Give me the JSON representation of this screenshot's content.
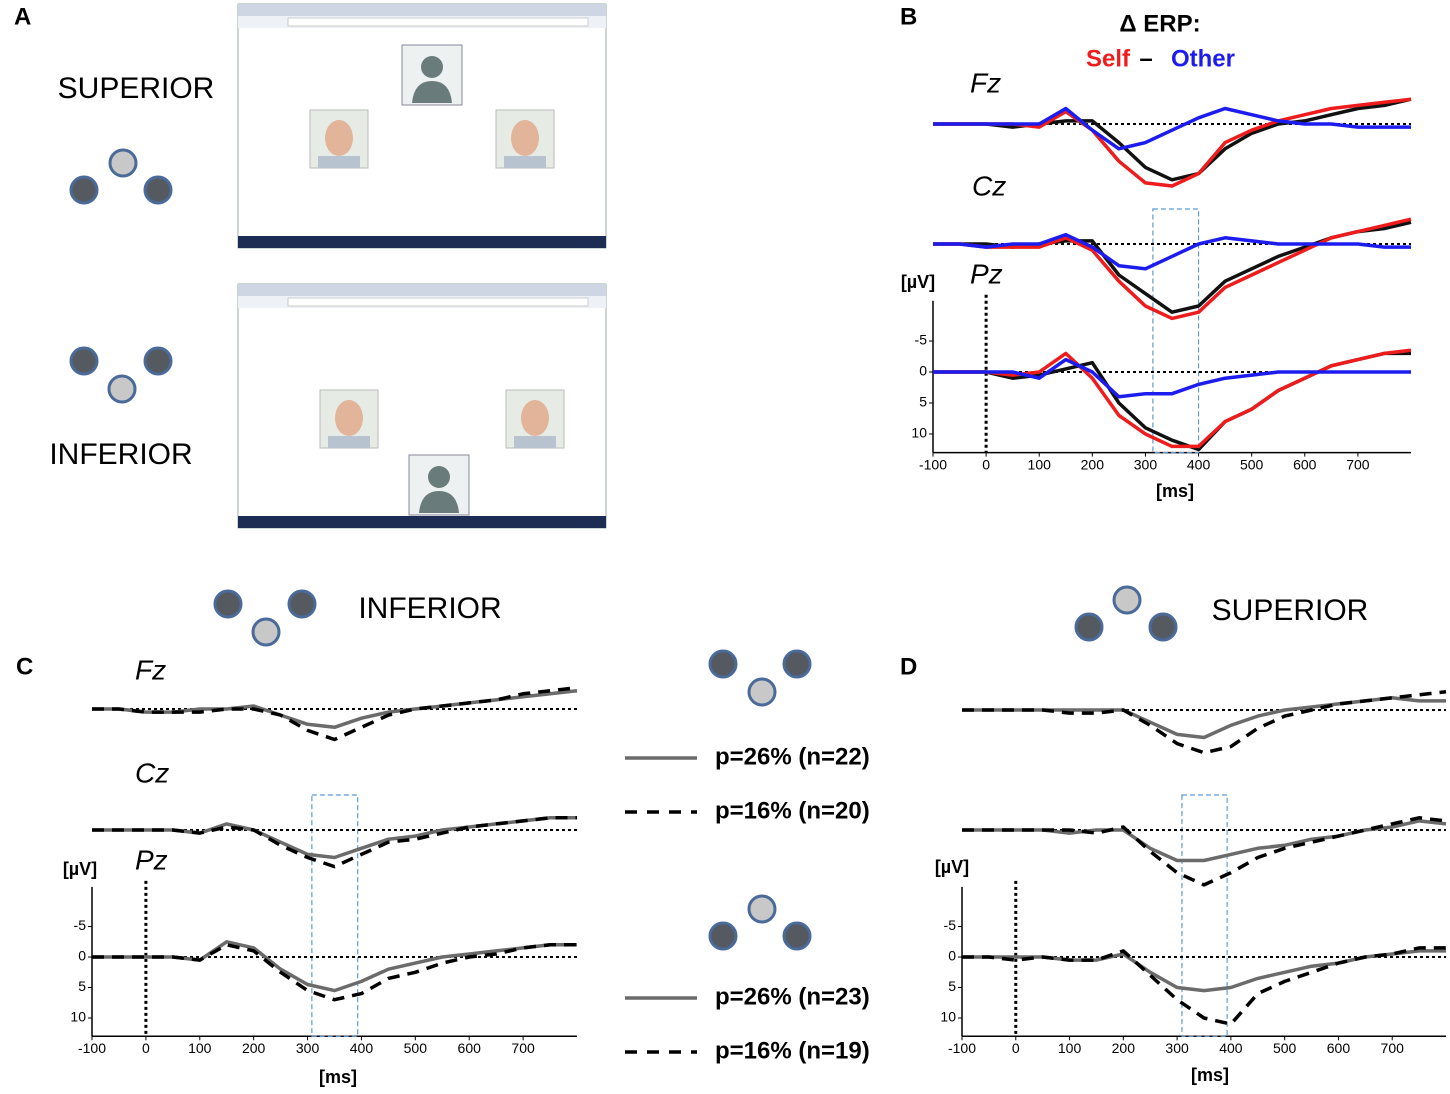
{
  "panel_a": {
    "label": "A",
    "conditions": [
      "SUPERIOR",
      "INFERIOR"
    ]
  },
  "chart_data": [
    {
      "type": "erp",
      "label": "B",
      "title": "Δ ERP:",
      "legend_separator": "–",
      "x_label": "[ms]",
      "y_label": "[µV]",
      "y_inverted": true,
      "x": [
        -100,
        -50,
        0,
        50,
        100,
        150,
        200,
        250,
        300,
        350,
        400,
        450,
        500,
        550,
        600,
        650,
        700,
        750,
        800
      ],
      "xlim": [
        -100,
        800
      ],
      "xticks": [
        -100,
        0,
        100,
        200,
        300,
        400,
        500,
        600,
        700
      ],
      "ylim": [
        -11.5,
        13
      ],
      "yticks": [
        -5,
        0,
        5,
        10
      ],
      "window": [
        314,
        400
      ],
      "series": [
        {
          "color": "#111111"
        },
        {
          "name": "Self",
          "color": "#ee1c1c"
        },
        {
          "name": "Other",
          "color": "#1c1cee"
        }
      ],
      "channels": [
        {
          "name": "Fz",
          "values": [
            [
              0,
              0,
              0,
              0.5,
              0,
              -0.5,
              -0.5,
              3,
              7,
              9,
              8,
              4,
              1.5,
              0,
              -0.5,
              -1.5,
              -2.5,
              -3,
              -4
            ],
            [
              0,
              0,
              0,
              0,
              0.5,
              -2,
              1,
              6,
              9.5,
              10,
              8,
              3,
              1,
              -0.5,
              -1.5,
              -2.5,
              -3,
              -3.5,
              -4
            ],
            [
              0,
              0,
              0,
              0,
              0,
              -2.5,
              1,
              4,
              3,
              1,
              -1,
              -2.5,
              -1.5,
              -0.5,
              0,
              0,
              0.5,
              0.5,
              0.5
            ]
          ]
        },
        {
          "name": "Cz",
          "values": [
            [
              0,
              0,
              0,
              0.5,
              0,
              -0.5,
              -0.5,
              5,
              8,
              11,
              10,
              6,
              4,
              2,
              0.5,
              -1,
              -2,
              -2.5,
              -3.5
            ],
            [
              0,
              0,
              0.5,
              0.5,
              0.5,
              -1,
              1,
              6,
              10,
              12,
              11,
              7,
              5,
              3,
              1,
              -1,
              -2,
              -3,
              -4
            ],
            [
              0,
              0,
              0.5,
              0,
              0,
              -1.5,
              0.5,
              3.5,
              4,
              2,
              0,
              -1,
              -0.5,
              0,
              0,
              0,
              0,
              0.5,
              0.5
            ]
          ]
        },
        {
          "name": "Pz",
          "values": [
            [
              0,
              0,
              0,
              1,
              0.5,
              -0.5,
              -1.5,
              5,
              9,
              11,
              12.5,
              8,
              6,
              3,
              1,
              -1,
              -2,
              -3,
              -3
            ],
            [
              0,
              0,
              0,
              0.5,
              0,
              -3,
              1,
              7,
              10,
              12,
              12,
              8,
              6,
              3,
              1,
              -1,
              -2,
              -3,
              -3.5
            ],
            [
              0,
              0,
              0,
              0,
              1,
              -2,
              0,
              4,
              3.5,
              3.5,
              2,
              1,
              0.5,
              0,
              0,
              0,
              0,
              0,
              0
            ]
          ]
        }
      ]
    },
    {
      "type": "erp",
      "label": "C",
      "title": "INFERIOR",
      "x_label": "[ms]",
      "y_label": "[µV]",
      "y_inverted": true,
      "x": [
        -100,
        -50,
        0,
        50,
        100,
        150,
        200,
        250,
        300,
        350,
        400,
        450,
        500,
        550,
        600,
        650,
        700,
        750,
        800
      ],
      "xlim": [
        -100,
        800
      ],
      "xticks": [
        -100,
        0,
        100,
        200,
        300,
        400,
        500,
        600,
        700
      ],
      "ylim": [
        -11.5,
        13
      ],
      "yticks": [
        -5,
        0,
        5,
        10
      ],
      "window": [
        308,
        393
      ],
      "series": [
        {
          "name": "p=26% (n=22)",
          "color": "#6b6b6b",
          "dashed": false
        },
        {
          "name": "p=16% (n=20)",
          "color": "#000000",
          "dashed": true
        }
      ],
      "channels": [
        {
          "name": "Fz",
          "values": [
            [
              0,
              0,
              0.5,
              0.5,
              0,
              0,
              -0.5,
              1,
              2.5,
              3,
              1.5,
              0.5,
              0,
              -0.5,
              -1,
              -1.5,
              -2,
              -2.5,
              -3
            ],
            [
              0,
              0,
              0.5,
              0.5,
              0.5,
              0,
              0,
              1,
              3.5,
              5,
              3,
              1,
              0,
              -0.5,
              -1,
              -1.5,
              -2.5,
              -3,
              -3.5
            ]
          ]
        },
        {
          "name": "Cz",
          "values": [
            [
              0,
              0,
              0,
              0,
              0.5,
              -1,
              0,
              2,
              4,
              4.5,
              3,
              1.5,
              1,
              0,
              -0.5,
              -1,
              -1.5,
              -2,
              -2
            ],
            [
              0,
              0,
              0,
              0,
              0.5,
              -0.5,
              0,
              2.5,
              4.5,
              6,
              4,
              2,
              1.5,
              0.5,
              -0.5,
              -1,
              -1.5,
              -2,
              -2
            ]
          ]
        },
        {
          "name": "Pz",
          "values": [
            [
              0,
              0,
              0,
              0,
              0.5,
              -2.5,
              -1.5,
              2,
              4.5,
              5.5,
              4,
              2,
              1,
              0,
              -0.5,
              -1,
              -1.5,
              -2,
              -2
            ],
            [
              0,
              0,
              0,
              0,
              0.5,
              -2,
              -1,
              2.5,
              5.5,
              7,
              6,
              3.5,
              2.5,
              1,
              0,
              -0.5,
              -1.5,
              -2,
              -2
            ]
          ]
        }
      ]
    },
    {
      "type": "erp",
      "label": "D",
      "title": "SUPERIOR",
      "x_label": "[ms]",
      "y_label": "[µV]",
      "y_inverted": true,
      "x": [
        -100,
        -50,
        0,
        50,
        100,
        150,
        200,
        250,
        300,
        350,
        400,
        450,
        500,
        550,
        600,
        650,
        700,
        750,
        800
      ],
      "xlim": [
        -100,
        800
      ],
      "xticks": [
        -100,
        0,
        100,
        200,
        300,
        400,
        500,
        600,
        700
      ],
      "ylim": [
        -11.5,
        13
      ],
      "yticks": [
        -5,
        0,
        5,
        10
      ],
      "window": [
        309,
        393
      ],
      "series": [
        {
          "name": "p=26% (n=23)",
          "color": "#6b6b6b",
          "dashed": false
        },
        {
          "name": "p=16% (n=19)",
          "color": "#000000",
          "dashed": true
        }
      ],
      "channels": [
        {
          "values": [
            [
              0,
              0,
              0,
              0,
              0,
              0,
              0,
              2,
              4,
              4.5,
              2.5,
              1,
              0,
              -0.5,
              -1,
              -1.5,
              -2,
              -1.5,
              -1.5
            ],
            [
              0,
              0,
              0,
              0,
              0.5,
              0.5,
              0,
              2.5,
              5.5,
              7,
              6,
              3,
              1,
              0,
              -1,
              -1.5,
              -2,
              -2.5,
              -3
            ]
          ]
        },
        {
          "values": [
            [
              0,
              0,
              0,
              0,
              0.5,
              0,
              0,
              3,
              5,
              5,
              4,
              3,
              2.5,
              1.5,
              1,
              0,
              -0.5,
              -1.5,
              -1
            ],
            [
              0,
              0,
              0,
              0,
              0,
              0.5,
              -0.5,
              3.5,
              7,
              9,
              7,
              4.5,
              3,
              2,
              1,
              0,
              -1,
              -2,
              -1.5
            ]
          ]
        },
        {
          "values": [
            [
              0,
              0,
              0,
              0,
              0.5,
              0.5,
              -0.5,
              2.5,
              5,
              5.5,
              5,
              3.5,
              2.5,
              1.5,
              1,
              0,
              -0.5,
              -1,
              -1
            ],
            [
              0,
              0,
              0.5,
              0,
              0.5,
              0.5,
              -1,
              3,
              7,
              10,
              11,
              6,
              4,
              2.5,
              1,
              0,
              -0.5,
              -1.5,
              -1.5
            ]
          ]
        }
      ]
    }
  ]
}
